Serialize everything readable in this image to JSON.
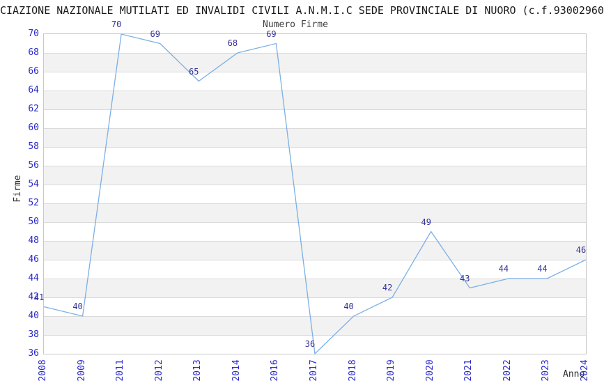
{
  "header": {
    "title": "CIAZIONE NAZIONALE MUTILATI ED INVALIDI CIVILI A.N.M.I.C SEDE PROVINCIALE DI NUORO (c.f.93002960",
    "subtitle": "Numero Firme"
  },
  "chart_data": {
    "type": "line",
    "title": "CIAZIONE NAZIONALE MUTILATI ED INVALIDI CIVILI A.N.M.I.C SEDE PROVINCIALE DI NUORO (c.f.93002960",
    "subtitle": "Numero Firme",
    "xlabel": "Anno",
    "ylabel": "Firme",
    "categories": [
      "2008",
      "2009",
      "2011",
      "2012",
      "2013",
      "2014",
      "2016",
      "2017",
      "2018",
      "2019",
      "2020",
      "2021",
      "2022",
      "2023",
      "2024"
    ],
    "values": [
      41,
      40,
      70,
      69,
      65,
      68,
      69,
      36,
      40,
      42,
      49,
      43,
      44,
      44,
      46
    ],
    "point_labels": [
      "41",
      "40",
      "70",
      "69",
      "65",
      "68",
      "69",
      "36",
      "40",
      "42",
      "49",
      "43",
      "44",
      "44",
      "46"
    ],
    "ylim": [
      36,
      70
    ],
    "ytick_step": 2,
    "grid": "horizontal-bands-alternating",
    "legend_position": "none",
    "colors": {
      "line": "#7cafe6",
      "tick_label": "#2929cc",
      "point_label": "#333399",
      "band": "#f2f2f2",
      "gridline": "#dadada",
      "border": "#c8c8c8",
      "title": "#1a1a1a",
      "subtitle": "#3d3d3d",
      "axis_title": "#2b2b2b"
    }
  }
}
